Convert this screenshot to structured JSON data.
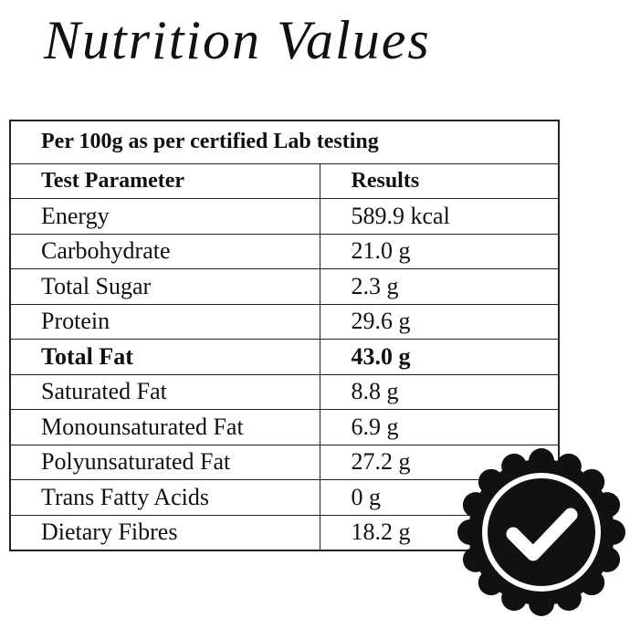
{
  "header": {
    "title": "Nutrition Values"
  },
  "table": {
    "caption": "Per 100g as per certified Lab testing",
    "columns": [
      "Test Parameter",
      "Results"
    ],
    "rows": [
      {
        "cells": [
          "Energy",
          "589.9 kcal"
        ]
      },
      {
        "cells": [
          "Carbohydrate",
          "21.0 g"
        ]
      },
      {
        "cells": [
          "Total Sugar",
          "2.3 g"
        ]
      },
      {
        "cells": [
          "Protein",
          "29.6 g"
        ]
      },
      {
        "cells": [
          "Total Fat",
          "43.0 g"
        ],
        "bold": true
      },
      {
        "cells": [
          "Saturated Fat",
          "8.8 g"
        ]
      },
      {
        "cells": [
          "Monounsaturated Fat",
          "6.9 g"
        ]
      },
      {
        "cells": [
          "Polyunsaturated Fat",
          "27.2 g"
        ]
      },
      {
        "cells": [
          "Trans Fatty Acids",
          "0 g"
        ]
      },
      {
        "cells": [
          "Dietary Fibres",
          "18.2 g"
        ]
      }
    ]
  }
}
